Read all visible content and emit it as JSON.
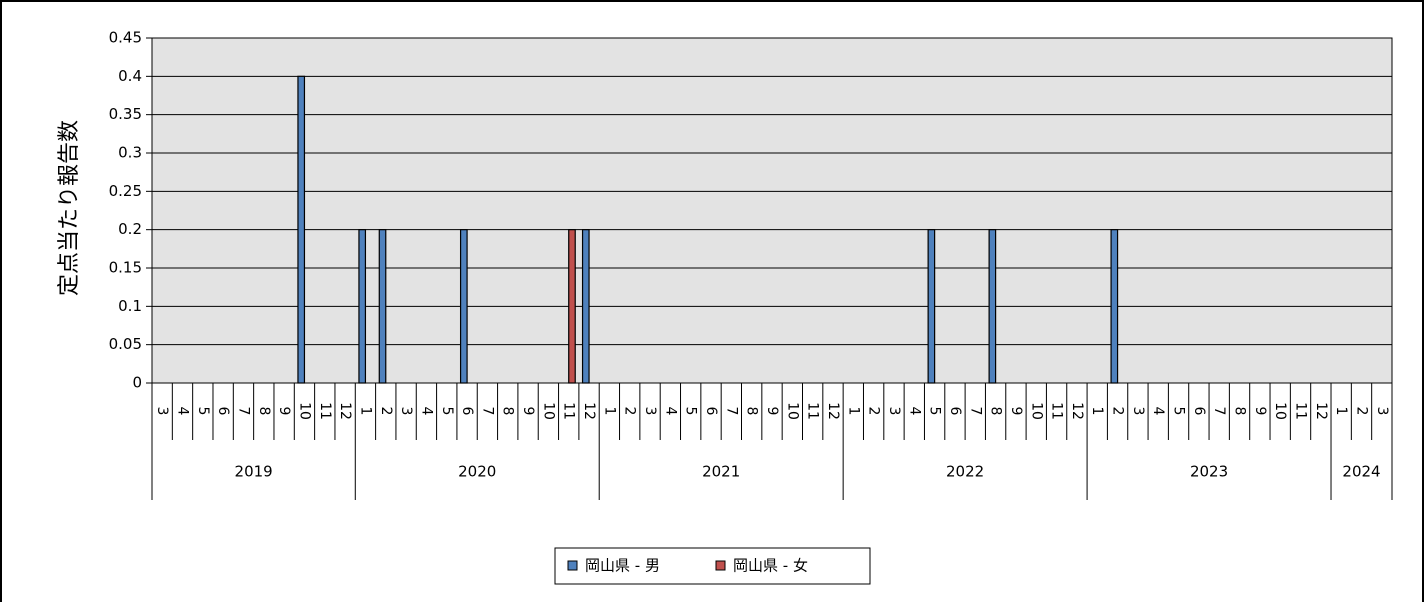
{
  "chart_data": {
    "type": "bar",
    "title": "",
    "ylabel": "定点当たり報告数",
    "xlabel": "",
    "ylim": [
      0,
      0.45
    ],
    "y_ticks": [
      "0",
      "0.05",
      "0.1",
      "0.15",
      "0.2",
      "0.25",
      "0.3",
      "0.35",
      "0.4",
      "0.45"
    ],
    "grid": true,
    "legend_position": "bottom",
    "years": [
      {
        "label": "2019",
        "months": [
          "3",
          "4",
          "5",
          "6",
          "7",
          "8",
          "9",
          "10",
          "11",
          "12"
        ]
      },
      {
        "label": "2020",
        "months": [
          "1",
          "2",
          "3",
          "4",
          "5",
          "6",
          "7",
          "8",
          "9",
          "10",
          "11",
          "12"
        ]
      },
      {
        "label": "2021",
        "months": [
          "1",
          "2",
          "3",
          "4",
          "5",
          "6",
          "7",
          "8",
          "9",
          "10",
          "11",
          "12"
        ]
      },
      {
        "label": "2022",
        "months": [
          "1",
          "2",
          "3",
          "4",
          "5",
          "6",
          "7",
          "8",
          "9",
          "10",
          "11",
          "12"
        ]
      },
      {
        "label": "2023",
        "months": [
          "1",
          "2",
          "3",
          "4",
          "5",
          "6",
          "7",
          "8",
          "9",
          "10",
          "11",
          "12"
        ]
      },
      {
        "label": "2024",
        "months": [
          "1",
          "2",
          "3"
        ]
      }
    ],
    "series": [
      {
        "name": "岡山県 - 男",
        "color": "#4f81bd",
        "values": [
          0,
          0,
          0,
          0,
          0,
          0,
          0,
          0.4,
          0,
          0,
          0.2,
          0.2,
          0,
          0,
          0,
          0.2,
          0,
          0,
          0,
          0,
          0,
          0.2,
          0,
          0,
          0,
          0,
          0,
          0,
          0,
          0,
          0,
          0,
          0,
          0,
          0,
          0,
          0,
          0,
          0.2,
          0,
          0,
          0.2,
          0,
          0,
          0,
          0,
          0,
          0.2,
          0,
          0,
          0,
          0,
          0,
          0,
          0,
          0,
          0,
          0,
          0,
          0,
          0
        ]
      },
      {
        "name": "岡山県 - 女",
        "color": "#c0504d",
        "values": [
          0,
          0,
          0,
          0,
          0,
          0,
          0,
          0,
          0,
          0,
          0,
          0,
          0,
          0,
          0,
          0,
          0,
          0,
          0,
          0,
          0.2,
          0,
          0,
          0,
          0,
          0,
          0,
          0,
          0,
          0,
          0,
          0,
          0,
          0,
          0,
          0,
          0,
          0,
          0,
          0,
          0,
          0,
          0,
          0,
          0,
          0,
          0,
          0,
          0,
          0,
          0,
          0,
          0,
          0,
          0,
          0,
          0,
          0,
          0,
          0,
          0
        ]
      }
    ]
  }
}
